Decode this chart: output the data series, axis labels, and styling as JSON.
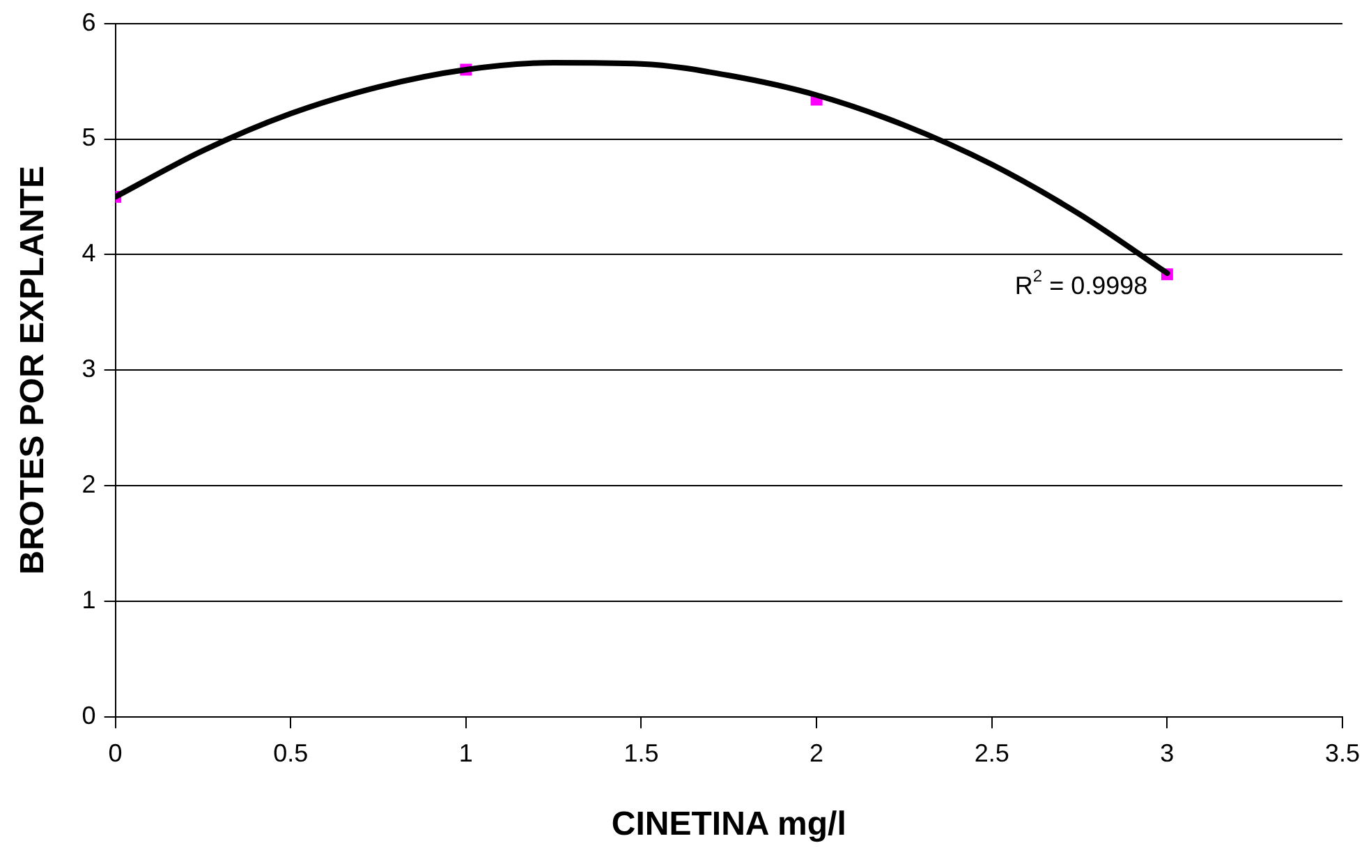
{
  "chart_data": {
    "type": "scatter",
    "xlabel": "CINETINA mg/l",
    "ylabel": "BROTES POR EXPLANTE",
    "x": [
      0,
      1,
      2,
      3
    ],
    "xlim": [
      0,
      3.5
    ],
    "xticks": [
      0,
      0.5,
      1,
      1.5,
      2,
      2.5,
      3,
      3.5
    ],
    "ylim": [
      0,
      6
    ],
    "yticks": [
      0,
      1,
      2,
      3,
      4,
      5,
      6
    ],
    "grid": "y",
    "legend": false,
    "series": [
      {
        "color": "#ff00ff",
        "marker": "square",
        "values": [
          4.5,
          5.6,
          5.34,
          3.83
        ]
      },
      {
        "type": "line",
        "color": "#000000",
        "marker": "none",
        "line_style": "solid",
        "x": [
          0,
          0.25,
          0.5,
          0.75,
          1,
          1.25,
          1.5,
          1.75,
          2,
          2.25,
          2.5,
          2.75,
          3
        ],
        "values": [
          4.5,
          4.9,
          5.22,
          5.45,
          5.6,
          5.66,
          5.65,
          5.55,
          5.38,
          5.12,
          4.78,
          4.35,
          3.84
        ]
      }
    ],
    "annotations": [
      {
        "text": "R$^{2}$ = 0.9998",
        "x": 3,
        "y": 3.83
      }
    ]
  }
}
